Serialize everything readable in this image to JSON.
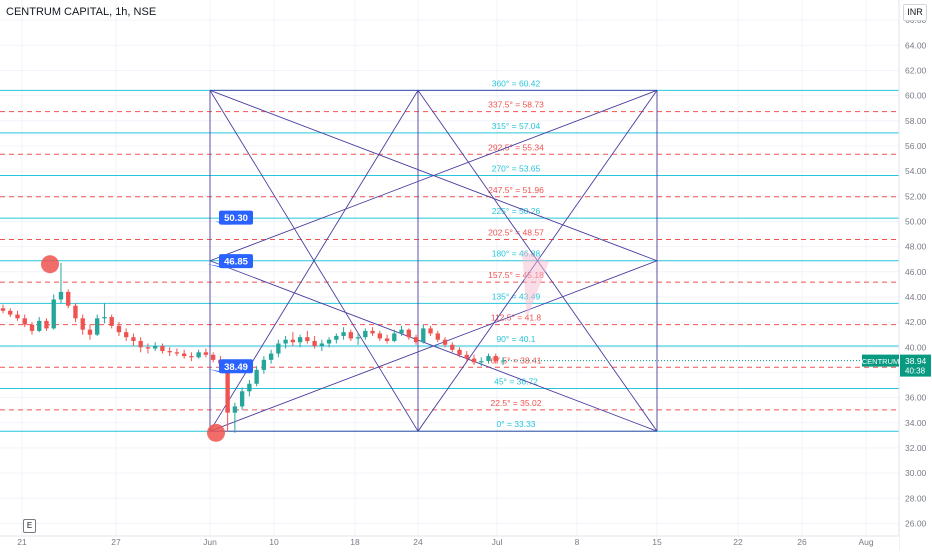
{
  "header": {
    "symbol_title": "CENTRUM CAPITAL, 1h, NSE",
    "currency": "INR",
    "e_badge": "E"
  },
  "colors": {
    "cyan_level": "#26c6da",
    "red_level": "#ef5350",
    "gann_lines": "#4a3fa0",
    "candle_up": "#26a69a",
    "candle_down": "#ef5350",
    "callout": "#2962ff",
    "price_tag": "#089981",
    "grid": "#f0f3fa",
    "axis_text": "#787b86"
  },
  "chart_data": {
    "type": "candlestick",
    "y_axis": {
      "range": [
        25.0,
        67.6
      ],
      "ticks": [
        "26.00",
        "28.00",
        "30.00",
        "32.00",
        "34.00",
        "36.00",
        "38.00",
        "40.00",
        "42.00",
        "44.00",
        "46.00",
        "48.00",
        "50.00",
        "52.00",
        "54.00",
        "56.00",
        "58.00",
        "60.00",
        "62.00",
        "64.00",
        "66.00"
      ]
    },
    "x_axis": {
      "tick_labels": [
        "21",
        "27",
        "Jun",
        "10",
        "18",
        "24",
        "Jul",
        "8",
        "15",
        "22",
        "26",
        "Aug"
      ]
    },
    "grid": true,
    "gann_levels": [
      {
        "label": "360° = 60.42",
        "price": 60.42,
        "style": "solid"
      },
      {
        "label": "337.5° = 58.73",
        "price": 58.73,
        "style": "dashed"
      },
      {
        "label": "315° = 57.04",
        "price": 57.04,
        "style": "solid"
      },
      {
        "label": "292.5° = 55.34",
        "price": 55.34,
        "style": "dashed"
      },
      {
        "label": "270° = 53.65",
        "price": 53.65,
        "style": "solid"
      },
      {
        "label": "247.5° = 51.96",
        "price": 51.96,
        "style": "dashed"
      },
      {
        "label": "225° = 50.26",
        "price": 50.26,
        "style": "solid"
      },
      {
        "label": "202.5° = 48.57",
        "price": 48.57,
        "style": "dashed"
      },
      {
        "label": "180° = 46.88",
        "price": 46.88,
        "style": "solid"
      },
      {
        "label": "157.5° = 45.18",
        "price": 45.18,
        "style": "dashed"
      },
      {
        "label": "135° = 43.49",
        "price": 43.49,
        "style": "solid"
      },
      {
        "label": "112.5° = 41.8",
        "price": 41.8,
        "style": "dashed"
      },
      {
        "label": "90° = 40.1",
        "price": 40.1,
        "style": "solid"
      },
      {
        "label": "67.5° = 38.41",
        "price": 38.41,
        "style": "dashed"
      },
      {
        "label": "45° = 36.72",
        "price": 36.72,
        "style": "solid"
      },
      {
        "label": "22.5° = 35.02",
        "price": 35.02,
        "style": "dashed"
      },
      {
        "label": "0° = 33.33",
        "price": 33.33,
        "style": "solid"
      }
    ],
    "gann_box": {
      "start": "Jun 3",
      "end": "Jul 15",
      "low": 33.33,
      "high": 60.42
    },
    "callouts": [
      {
        "label": "50.30",
        "price": 50.3
      },
      {
        "label": "46.85",
        "price": 46.85
      },
      {
        "label": "38.49",
        "price": 38.49
      }
    ],
    "markers": [
      {
        "price": 46.6,
        "note": "swing high"
      },
      {
        "price": 33.2,
        "note": "swing low"
      }
    ],
    "current_price": {
      "symbol": "CENTRUM",
      "price": "38.94",
      "countdown": "40:38"
    },
    "candles": [
      [
        43.1,
        43.4,
        42.7,
        42.9
      ],
      [
        42.9,
        43.1,
        42.4,
        42.6
      ],
      [
        42.6,
        42.9,
        42.1,
        42.3
      ],
      [
        42.3,
        42.6,
        41.6,
        41.8
      ],
      [
        41.8,
        42.0,
        41.0,
        41.3
      ],
      [
        41.3,
        42.4,
        41.2,
        42.1
      ],
      [
        42.1,
        42.3,
        41.3,
        41.5
      ],
      [
        41.5,
        44.2,
        41.4,
        43.8
      ],
      [
        43.8,
        46.7,
        43.5,
        44.4
      ],
      [
        44.4,
        44.6,
        43.1,
        43.3
      ],
      [
        43.3,
        43.5,
        42.0,
        42.3
      ],
      [
        42.3,
        42.6,
        41.0,
        41.4
      ],
      [
        41.4,
        41.8,
        40.6,
        41.0
      ],
      [
        41.0,
        42.6,
        40.9,
        42.3
      ],
      [
        42.3,
        43.5,
        41.9,
        42.4
      ],
      [
        42.4,
        42.6,
        41.5,
        41.7
      ],
      [
        41.7,
        42.0,
        40.9,
        41.2
      ],
      [
        41.2,
        41.5,
        40.5,
        40.8
      ],
      [
        40.8,
        41.1,
        40.1,
        40.5
      ],
      [
        40.5,
        40.8,
        39.6,
        40.0
      ],
      [
        40.0,
        40.3,
        39.5,
        39.9
      ],
      [
        39.9,
        40.4,
        39.7,
        40.1
      ],
      [
        40.1,
        40.3,
        39.5,
        39.7
      ],
      [
        39.7,
        40.0,
        39.3,
        39.6
      ],
      [
        39.6,
        39.9,
        39.3,
        39.5
      ],
      [
        39.5,
        39.8,
        39.1,
        39.3
      ],
      [
        39.3,
        39.6,
        38.9,
        39.2
      ],
      [
        39.2,
        39.8,
        39.1,
        39.6
      ],
      [
        39.6,
        39.9,
        39.2,
        39.4
      ],
      [
        39.4,
        39.6,
        38.8,
        39.0
      ],
      [
        39.0,
        39.3,
        38.5,
        38.7
      ],
      [
        38.7,
        38.9,
        33.3,
        34.8
      ],
      [
        34.8,
        35.6,
        33.2,
        35.3
      ],
      [
        35.3,
        36.8,
        35.0,
        36.5
      ],
      [
        36.5,
        37.4,
        36.1,
        37.1
      ],
      [
        37.1,
        38.5,
        36.9,
        38.2
      ],
      [
        38.2,
        39.3,
        37.9,
        39.0
      ],
      [
        39.0,
        39.8,
        38.7,
        39.5
      ],
      [
        39.5,
        40.6,
        39.2,
        40.3
      ],
      [
        40.3,
        40.9,
        39.9,
        40.6
      ],
      [
        40.6,
        41.2,
        40.1,
        40.4
      ],
      [
        40.4,
        41.0,
        40.0,
        40.8
      ],
      [
        40.8,
        41.3,
        40.3,
        40.5
      ],
      [
        40.5,
        40.9,
        39.9,
        40.1
      ],
      [
        40.1,
        40.6,
        39.7,
        40.3
      ],
      [
        40.3,
        40.8,
        40.0,
        40.6
      ],
      [
        40.6,
        41.1,
        40.3,
        40.9
      ],
      [
        40.9,
        41.6,
        40.6,
        41.2
      ],
      [
        41.2,
        41.4,
        40.5,
        40.7
      ],
      [
        40.7,
        41.1,
        40.2,
        40.8
      ],
      [
        40.8,
        41.5,
        40.6,
        41.3
      ],
      [
        41.3,
        41.6,
        40.9,
        41.1
      ],
      [
        41.1,
        41.3,
        40.5,
        40.7
      ],
      [
        40.7,
        41.0,
        40.3,
        40.5
      ],
      [
        40.5,
        41.4,
        40.4,
        41.1
      ],
      [
        41.1,
        41.7,
        40.9,
        41.4
      ],
      [
        41.4,
        41.5,
        40.6,
        40.8
      ],
      [
        40.8,
        41.0,
        40.2,
        40.4
      ],
      [
        40.4,
        41.8,
        40.3,
        41.5
      ],
      [
        41.5,
        41.7,
        40.9,
        41.1
      ],
      [
        41.1,
        41.3,
        40.4,
        40.6
      ],
      [
        40.6,
        40.8,
        40.0,
        40.2
      ],
      [
        40.2,
        40.4,
        39.6,
        39.8
      ],
      [
        39.8,
        40.0,
        39.2,
        39.4
      ],
      [
        39.4,
        39.7,
        38.9,
        39.1
      ],
      [
        39.1,
        39.4,
        38.6,
        38.8
      ],
      [
        38.8,
        39.2,
        38.5,
        38.9
      ],
      [
        38.9,
        39.5,
        38.7,
        39.3
      ],
      [
        39.3,
        39.5,
        38.7,
        38.9
      ],
      [
        38.9,
        39.2,
        38.6,
        38.94
      ]
    ]
  }
}
